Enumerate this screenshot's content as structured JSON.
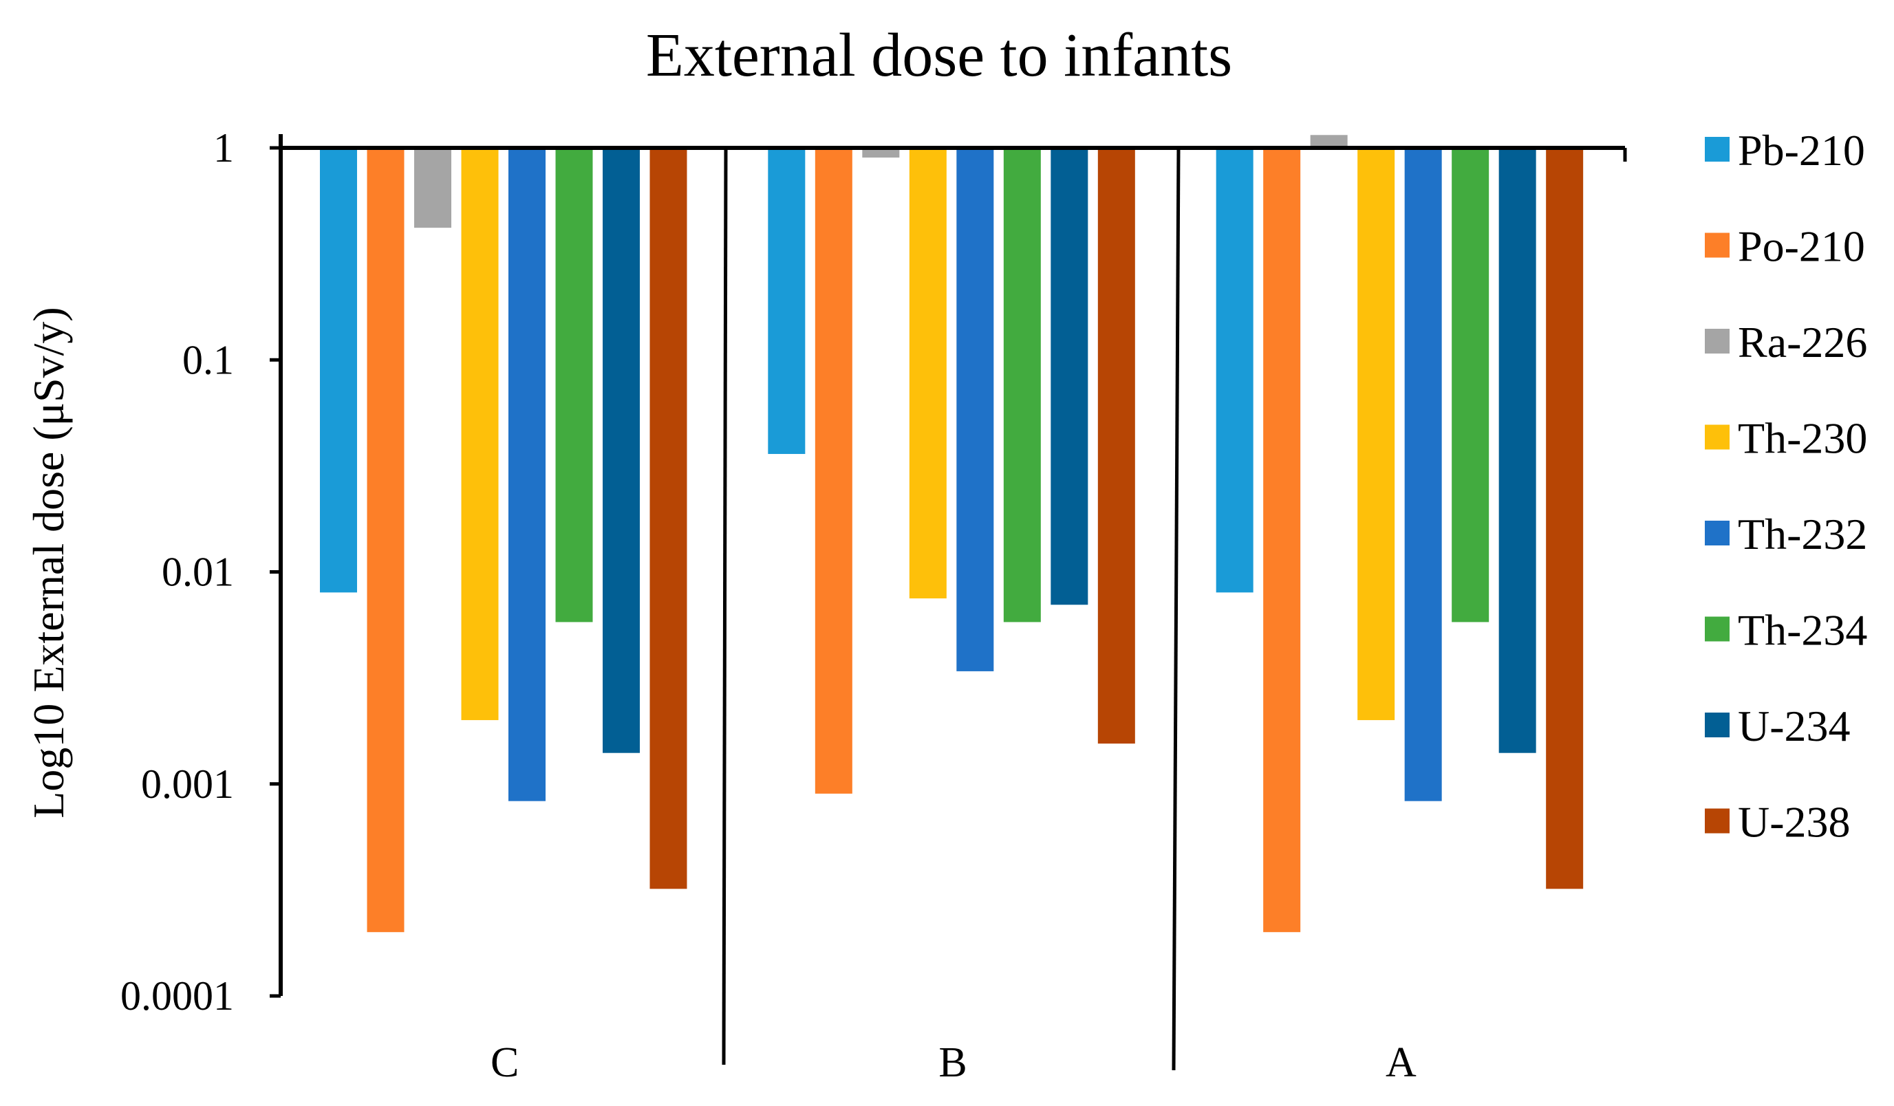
{
  "chart_data": {
    "type": "bar",
    "title": "External dose to infants",
    "xlabel": "",
    "ylabel": "Log10 External dose (μSv/y)",
    "yscale": "log",
    "ylim": [
      0.0001,
      1
    ],
    "ytick_values": [
      1,
      0.1,
      0.01,
      0.001,
      0.0001
    ],
    "ytick_labels": [
      "1",
      "0.1",
      "0.01",
      "0.001",
      "0.0001"
    ],
    "categories": [
      "C",
      "B",
      "A"
    ],
    "legend_position": "right",
    "grid": false,
    "series": [
      {
        "name": "Pb-210",
        "color": "#1a9bd7",
        "values": [
          0.008,
          0.036,
          0.008
        ]
      },
      {
        "name": "Po-210",
        "color": "#fd7f28",
        "values": [
          0.0002,
          0.0009,
          0.0002
        ]
      },
      {
        "name": "Ra-226",
        "color": "#a5a5a5",
        "values": [
          0.42,
          0.9,
          1.15
        ]
      },
      {
        "name": "Th-230",
        "color": "#fec00a",
        "values": [
          0.002,
          0.0075,
          0.002
        ]
      },
      {
        "name": "Th-232",
        "color": "#1f72c8",
        "values": [
          0.00083,
          0.0034,
          0.00083
        ]
      },
      {
        "name": "Th-234",
        "color": "#42ab3f",
        "values": [
          0.0058,
          0.0058,
          0.0058
        ]
      },
      {
        "name": "U-234",
        "color": "#025f94",
        "values": [
          0.0014,
          0.007,
          0.0014
        ]
      },
      {
        "name": "U-238",
        "color": "#b74504",
        "values": [
          0.00032,
          0.00155,
          0.00032
        ]
      }
    ]
  }
}
